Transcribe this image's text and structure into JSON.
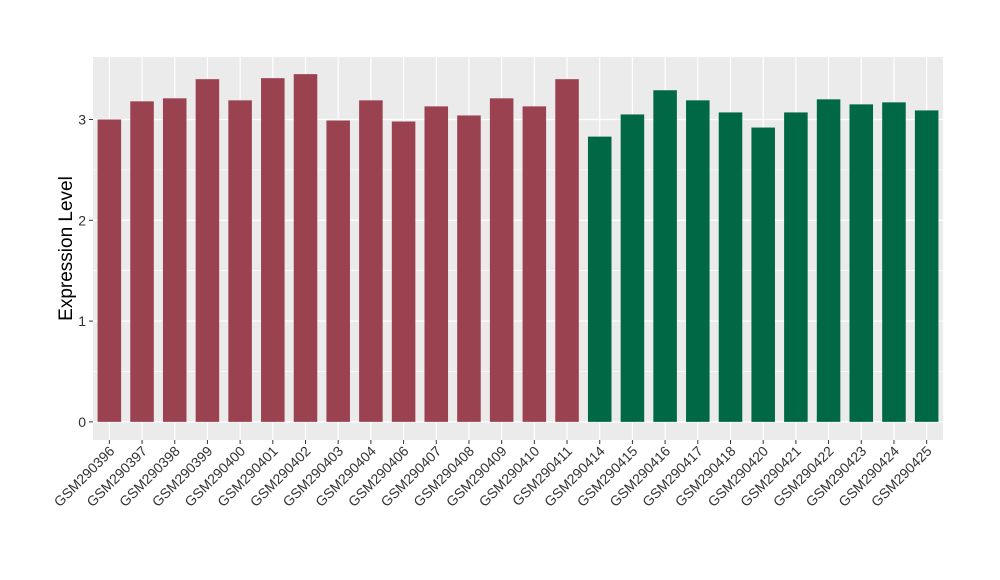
{
  "chart_data": {
    "type": "bar",
    "title": "",
    "xlabel": "",
    "ylabel": "Expression Level",
    "ylim": [
      -0.18,
      3.62
    ],
    "yticks": [
      0,
      1,
      2,
      3
    ],
    "grid": true,
    "legend": "none",
    "panel_background": "#ebebeb",
    "gridline_color": "#ffffff",
    "categories": [
      "GSM290396",
      "GSM290397",
      "GSM290398",
      "GSM290399",
      "GSM290400",
      "GSM290401",
      "GSM290402",
      "GSM290403",
      "GSM290404",
      "GSM290406",
      "GSM290407",
      "GSM290408",
      "GSM290409",
      "GSM290410",
      "GSM290411",
      "GSM290414",
      "GSM290415",
      "GSM290416",
      "GSM290417",
      "GSM290418",
      "GSM290420",
      "GSM290421",
      "GSM290422",
      "GSM290423",
      "GSM290424",
      "GSM290425"
    ],
    "values": [
      3.0,
      3.18,
      3.21,
      3.4,
      3.19,
      3.41,
      3.45,
      2.99,
      3.19,
      2.98,
      3.13,
      3.04,
      3.21,
      3.13,
      3.4,
      2.83,
      3.05,
      3.29,
      3.19,
      3.07,
      2.92,
      3.07,
      3.2,
      3.15,
      3.17,
      3.09
    ],
    "bar_colors": [
      "#9b4250",
      "#9b4250",
      "#9b4250",
      "#9b4250",
      "#9b4250",
      "#9b4250",
      "#9b4250",
      "#9b4250",
      "#9b4250",
      "#9b4250",
      "#9b4250",
      "#9b4250",
      "#9b4250",
      "#9b4250",
      "#9b4250",
      "#006845",
      "#006845",
      "#006845",
      "#006845",
      "#006845",
      "#006845",
      "#006845",
      "#006845",
      "#006845",
      "#006845",
      "#006845"
    ]
  }
}
